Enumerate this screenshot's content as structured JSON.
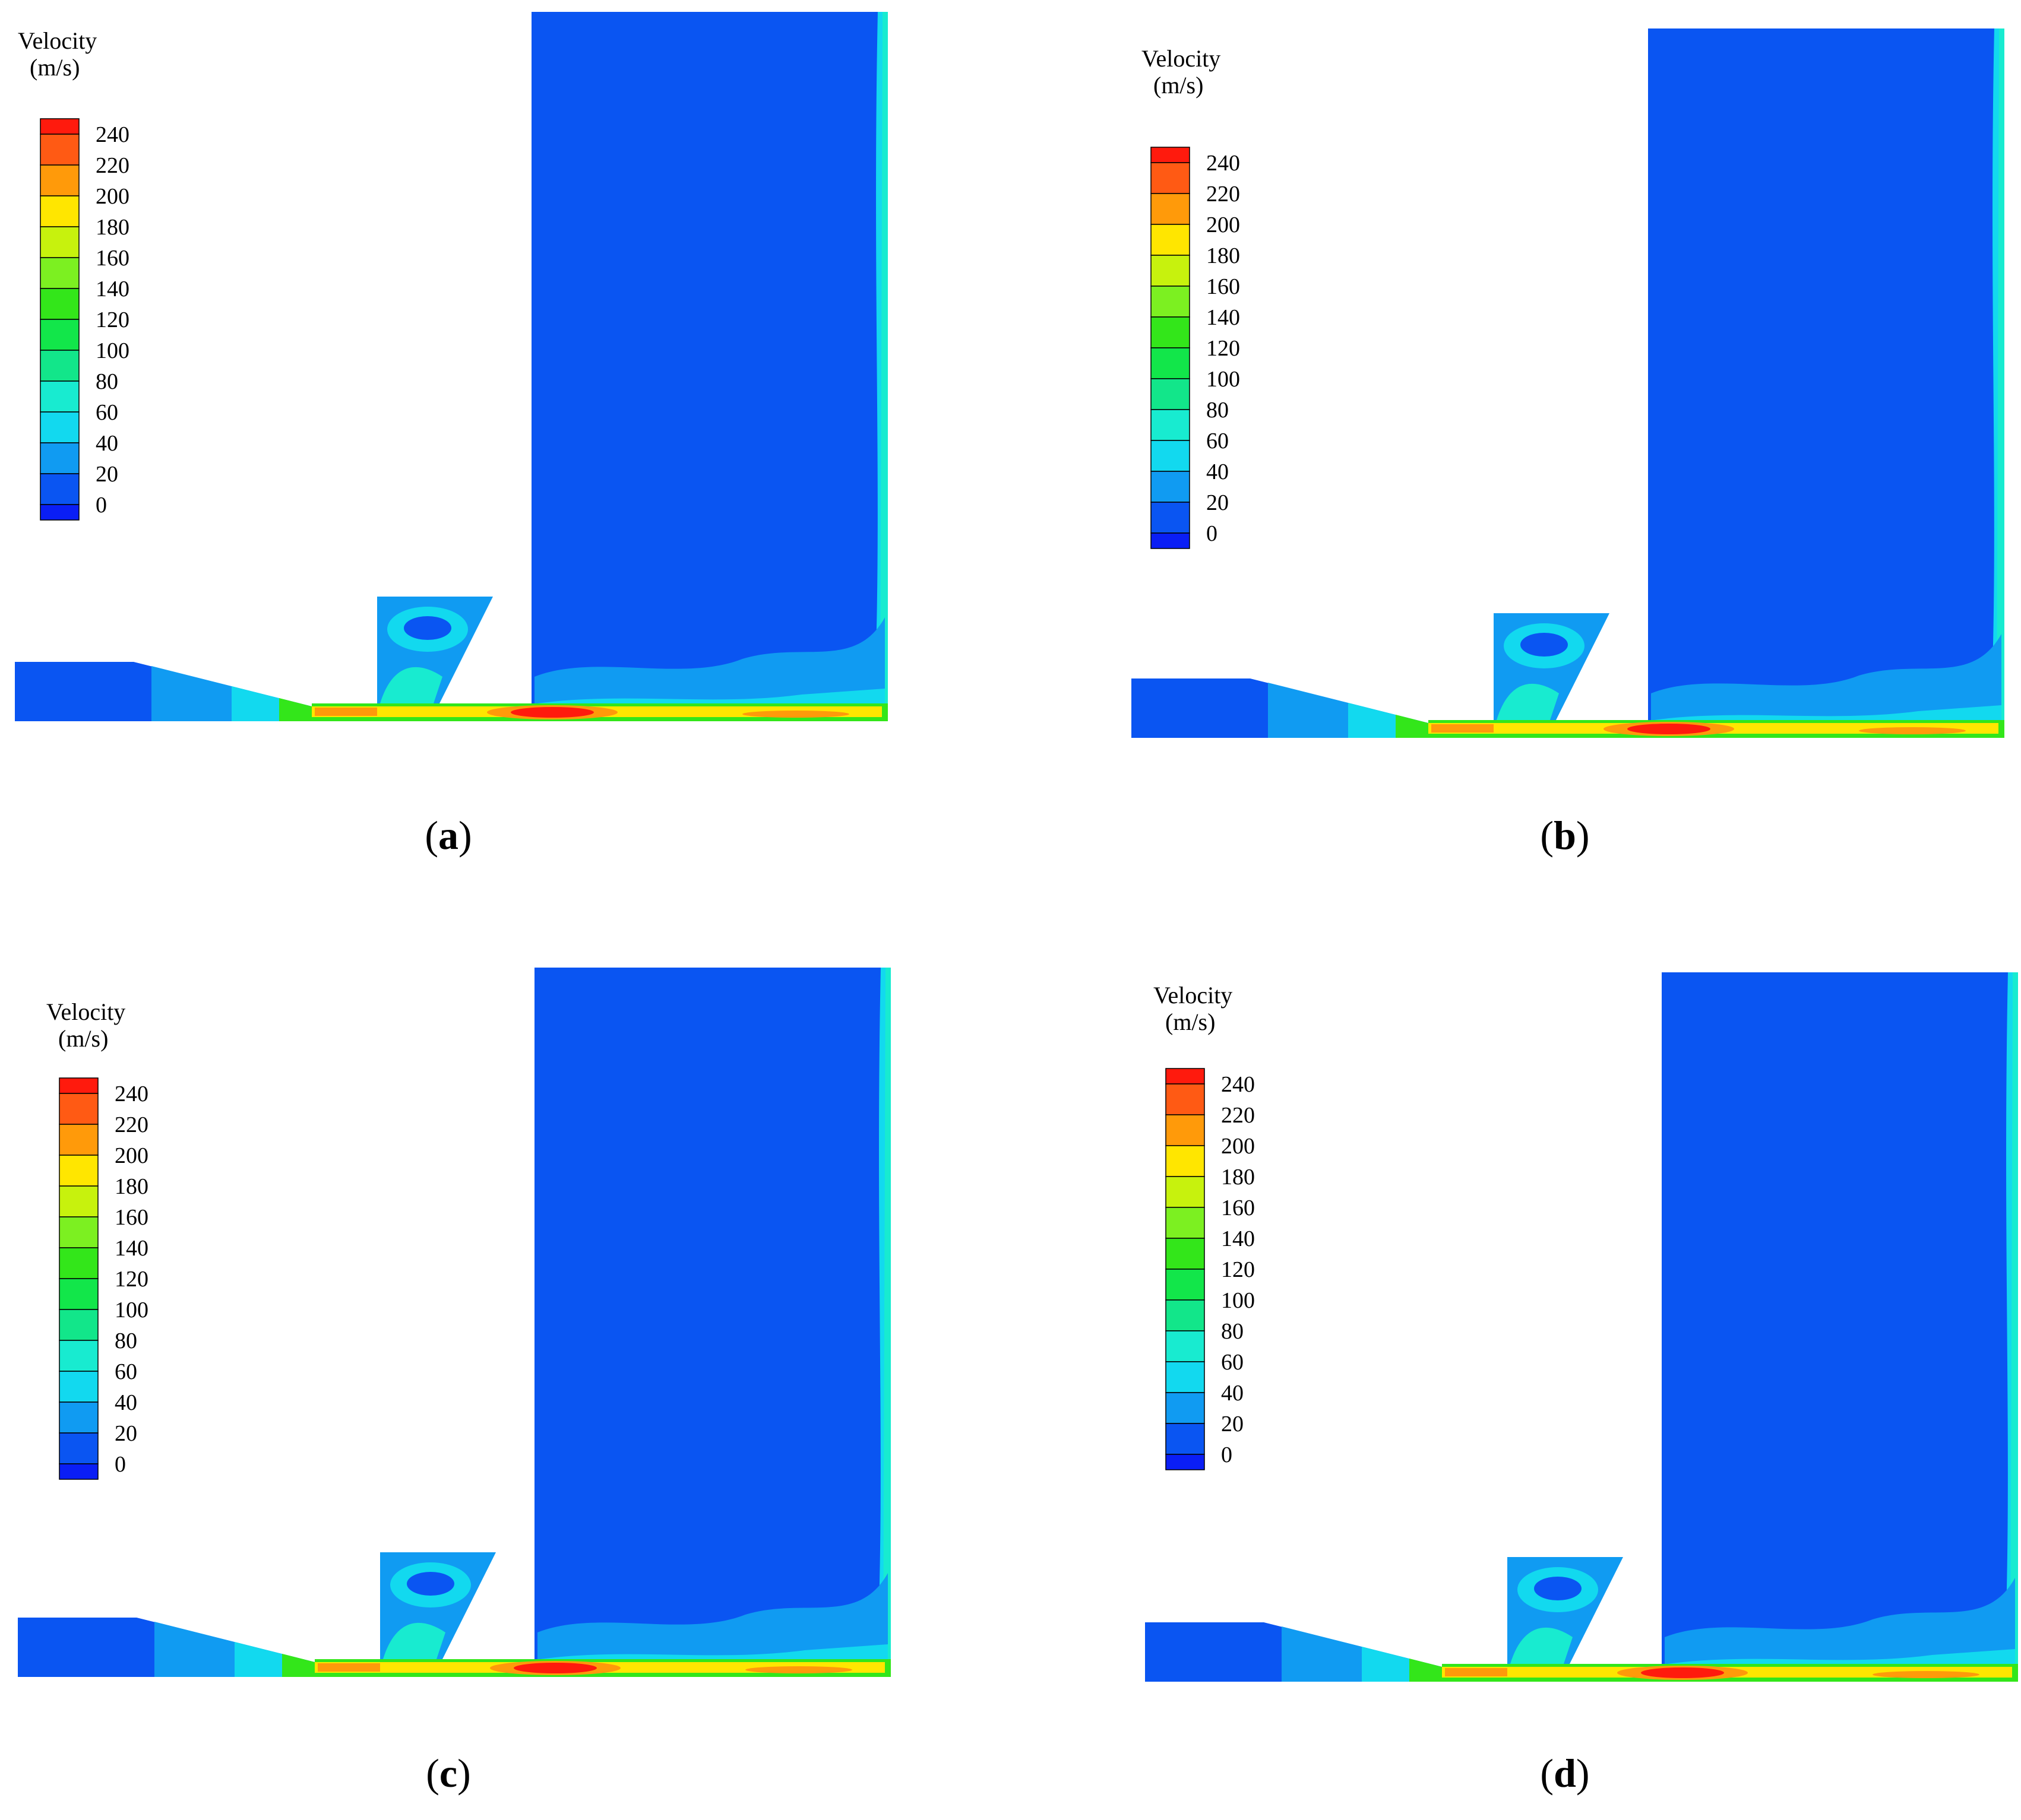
{
  "figure": {
    "legend": {
      "title_line1": "Velocity",
      "title_line2": "(m/s)",
      "ticks": [
        "240",
        "220",
        "200",
        "180",
        "160",
        "140",
        "120",
        "100",
        "80",
        "60",
        "40",
        "20",
        "0"
      ],
      "colors": [
        "#ff1a0d",
        "#ff5a14",
        "#ff9a0a",
        "#ffe600",
        "#c7f20d",
        "#7cf021",
        "#33e61a",
        "#12e64a",
        "#12e68a",
        "#18ebd0",
        "#12d9ef",
        "#109bf2",
        "#0a55f2",
        "#0a1ef5"
      ]
    },
    "panels": [
      {
        "id": "a",
        "open": "(",
        "letter": "a",
        "close": ")"
      },
      {
        "id": "b",
        "open": "(",
        "letter": "b",
        "close": ")"
      },
      {
        "id": "c",
        "open": "(",
        "letter": "c",
        "close": ")"
      },
      {
        "id": "d",
        "open": "(",
        "letter": "d",
        "close": ")"
      }
    ],
    "field_colors": {
      "background_flow": "#0a55f2",
      "inlet_low": "#109bf2",
      "inlet_mid": "#12d9ef",
      "wall_jet": "#18ebd0",
      "shear_green": "#33e61a",
      "shear_yellow": "#ffe600",
      "shear_orange": "#ff9a0a",
      "core_red": "#ff1a0d"
    }
  }
}
